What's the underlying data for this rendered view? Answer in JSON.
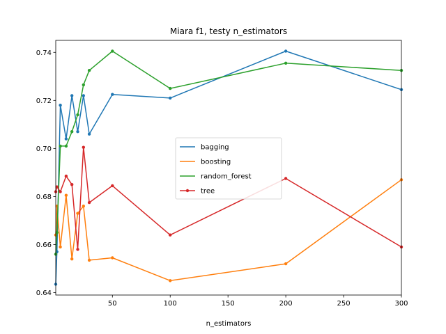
{
  "chart_data": {
    "type": "line",
    "title": "Miara f1, testy n_estimators",
    "xlabel": "n_estimators",
    "ylabel": "",
    "xlim": [
      1,
      300
    ],
    "ylim": [
      0.639,
      0.745
    ],
    "x_ticks": [
      50,
      100,
      150,
      200,
      250,
      300
    ],
    "y_ticks": [
      0.64,
      0.66,
      0.68,
      0.7,
      0.72,
      0.74
    ],
    "y_tick_labels": [
      "0.64",
      "0.66",
      "0.68",
      "0.70",
      "0.72",
      "0.74"
    ],
    "grid": false,
    "legend_position": "center",
    "x": [
      1,
      2,
      5,
      10,
      15,
      20,
      25,
      30,
      50,
      100,
      200,
      300
    ],
    "series": [
      {
        "name": "bagging",
        "color": "#1f77b4",
        "values": [
          0.6435,
          0.657,
          0.718,
          0.704,
          0.722,
          0.707,
          0.722,
          0.706,
          0.7225,
          0.721,
          0.7405,
          0.7245
        ]
      },
      {
        "name": "boosting",
        "color": "#ff7f0e",
        "values": [
          0.664,
          0.676,
          0.659,
          0.6805,
          0.654,
          0.673,
          0.676,
          0.6535,
          0.6545,
          0.645,
          0.652,
          0.687
        ]
      },
      {
        "name": "random_forest",
        "color": "#2ca02c",
        "values": [
          0.656,
          0.665,
          0.701,
          0.701,
          0.707,
          0.714,
          0.7265,
          0.7325,
          0.7405,
          0.725,
          0.7355,
          0.7325
        ]
      },
      {
        "name": "tree",
        "color": "#d62728",
        "values": [
          0.682,
          0.684,
          0.682,
          0.6885,
          0.685,
          0.658,
          0.7005,
          0.6775,
          0.6845,
          0.664,
          0.6875,
          0.659
        ]
      }
    ]
  }
}
